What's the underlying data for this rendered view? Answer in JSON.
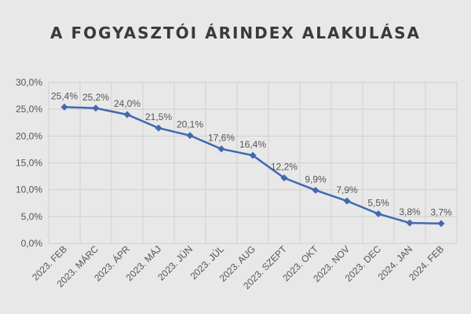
{
  "chart_data": {
    "type": "line",
    "title": "A FOGYASZTÓI  ÁRINDEX ALAKULÁSA",
    "categories": [
      "2023. FEB",
      "2023. MÁRC",
      "2023. ÁPR",
      "2023. MÁJ",
      "2023. JÚN",
      "2023. JÚL",
      "2023. AUG",
      "2023. SZEPT",
      "2023. OKT",
      "2023. NOV",
      "2023. DEC",
      "2024. JAN",
      "2024. FEB"
    ],
    "series": [
      {
        "values": [
          25.4,
          25.2,
          24.0,
          21.5,
          20.1,
          17.6,
          16.4,
          12.2,
          9.9,
          7.9,
          5.5,
          3.8,
          3.7
        ],
        "labels": [
          "25,4%",
          "25,2%",
          "24,0%",
          "21,5%",
          "20,1%",
          "17,6%",
          "16,4%",
          "12,2%",
          "9,9%",
          "7,9%",
          "5,5%",
          "3,8%",
          "3,7%"
        ],
        "color": "#4169b0"
      }
    ],
    "yticks": [
      "0,0%",
      "5,0%",
      "10,0%",
      "15,0%",
      "20,0%",
      "25,0%",
      "30,0%"
    ],
    "ylim": [
      0,
      30
    ],
    "grid": true,
    "xlabel": "",
    "ylabel": ""
  }
}
